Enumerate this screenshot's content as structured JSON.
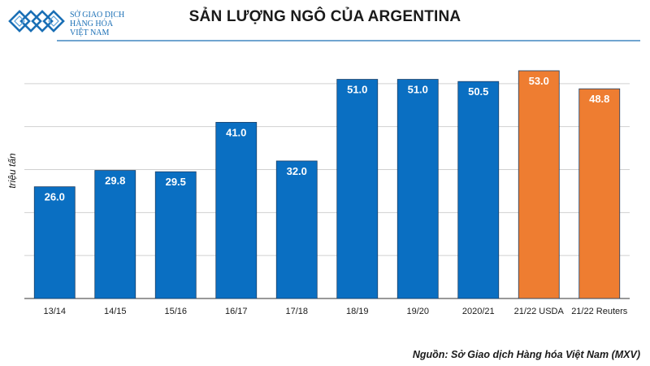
{
  "logo": {
    "line1": "SỞ GIAO DỊCH",
    "line2": "HÀNG HÓA",
    "line3": "VIỆT NAM"
  },
  "colors": {
    "blue": "#0a6fc2",
    "orange": "#ee7d31",
    "grid": "#d0d0d0"
  },
  "source": "Nguồn: Sở Giao dịch Hàng hóa Việt Nam (MXV)",
  "chart_data": {
    "type": "bar",
    "title": "SẢN LƯỢNG NGÔ CỦA ARGENTINA",
    "ylabel": "triệu tấn",
    "xlabel": "",
    "ylim": [
      0,
      60
    ],
    "grid": true,
    "categories": [
      "13/14",
      "14/15",
      "15/16",
      "16/17",
      "17/18",
      "18/19",
      "19/20",
      "2020/21",
      "21/22 USDA",
      "21/22 Reuters"
    ],
    "values": [
      26.0,
      29.8,
      29.5,
      41.0,
      32.0,
      51.0,
      51.0,
      50.5,
      53.0,
      48.8
    ],
    "data_labels": [
      "26.0",
      "29.8",
      "29.5",
      "41.0",
      "32.0",
      "51.0",
      "51.0",
      "50.5",
      "53.0",
      "48.8"
    ],
    "bar_colors": [
      "blue",
      "blue",
      "blue",
      "blue",
      "blue",
      "blue",
      "blue",
      "blue",
      "orange",
      "orange"
    ]
  }
}
